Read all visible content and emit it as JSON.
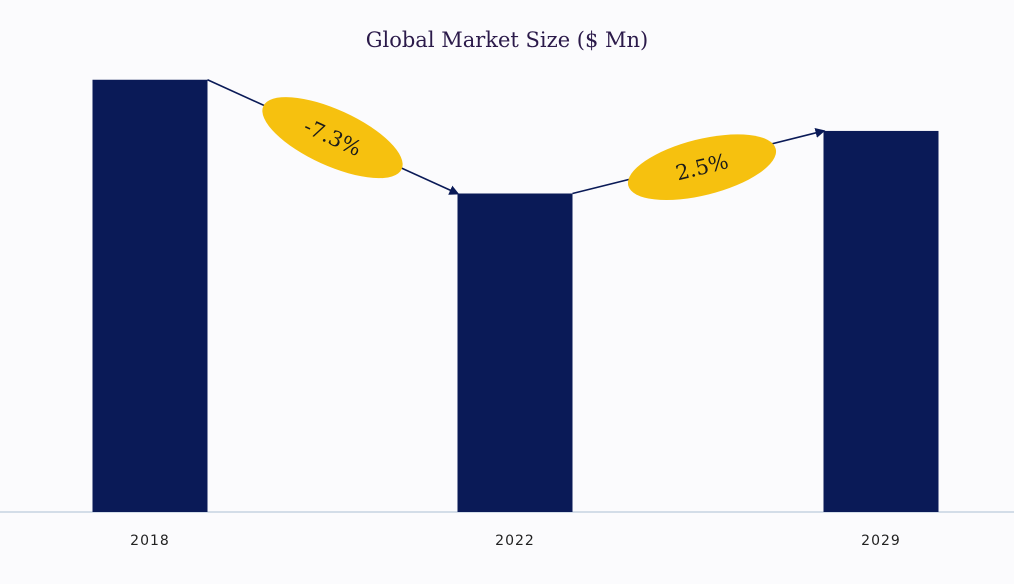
{
  "chart_data": {
    "type": "bar",
    "title": "Global Market Size ($ Mn)",
    "categories": [
      "2018",
      "2022",
      "2029"
    ],
    "values": [
      380,
      280,
      335
    ],
    "ylim": [
      0,
      400
    ],
    "grid": false,
    "legend": "none",
    "annotations": [
      {
        "from": "2018",
        "to": "2022",
        "text": "-7.3%"
      },
      {
        "from": "2022",
        "to": "2029",
        "text": "2.5%"
      }
    ],
    "colors": {
      "bar": "#0a1a57",
      "annotation_fill": "#f6c10f",
      "arrow": "#0a1a57",
      "axis": "#c6d3e2"
    }
  }
}
